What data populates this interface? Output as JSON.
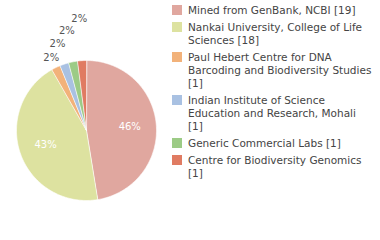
{
  "chart_data": {
    "type": "pie",
    "categories": [
      "Mined from GenBank, NCBI [19]",
      "Nankai University, College of Life Sciences [18]",
      "Paul Hebert Centre for DNA Barcoding and Biodiversity Studies [1]",
      "Indian Institute of Science Education and Research, Mohali [1]",
      "Generic Commercial Labs [1]",
      "Centre for Biodiversity Genomics [1]"
    ],
    "values": [
      46,
      43,
      2,
      2,
      2,
      2
    ],
    "value_labels": [
      "46%",
      "43%",
      "2%",
      "2%",
      "2%",
      "2%"
    ],
    "colors": [
      "#e0a79f",
      "#dde2a0",
      "#f2b27a",
      "#a9c1e2",
      "#9ccb86",
      "#e07b62"
    ],
    "data_labels": true,
    "legend": "right"
  }
}
